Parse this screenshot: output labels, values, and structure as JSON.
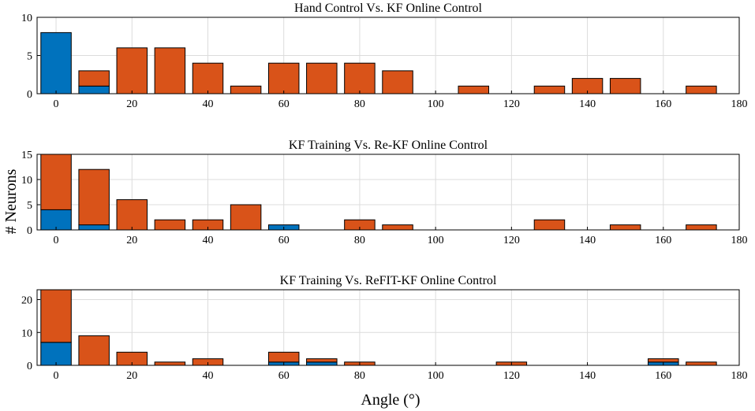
{
  "figure": {
    "ylabel": "# Neurons",
    "xlabel": "Angle (°)"
  },
  "colors": {
    "blue": "#0072bd",
    "orange": "#d95319"
  },
  "chart_data": [
    {
      "type": "bar",
      "stacked": true,
      "title": "Hand Control Vs. KF Online Control",
      "x": [
        0,
        10,
        20,
        30,
        40,
        50,
        60,
        70,
        80,
        90,
        100,
        110,
        120,
        130,
        140,
        150,
        160,
        170
      ],
      "series": [
        {
          "name": "blue",
          "values": [
            8,
            1,
            0,
            0,
            0,
            0,
            0,
            0,
            0,
            0,
            0,
            0,
            0,
            0,
            0,
            0,
            0,
            0
          ]
        },
        {
          "name": "orange",
          "values": [
            0,
            2,
            6,
            6,
            4,
            1,
            4,
            4,
            4,
            3,
            0,
            1,
            0,
            1,
            2,
            2,
            0,
            1
          ]
        }
      ],
      "xlim": [
        -5,
        180
      ],
      "ylim": [
        0,
        10
      ],
      "xticks": [
        0,
        20,
        40,
        60,
        80,
        100,
        120,
        140,
        160,
        180
      ],
      "yticks": [
        0,
        5,
        10
      ],
      "grid": true
    },
    {
      "type": "bar",
      "stacked": true,
      "title": "KF Training Vs. Re-KF Online Control",
      "x": [
        0,
        10,
        20,
        30,
        40,
        50,
        60,
        70,
        80,
        90,
        100,
        110,
        120,
        130,
        140,
        150,
        160,
        170
      ],
      "series": [
        {
          "name": "blue",
          "values": [
            4,
            1,
            0,
            0,
            0,
            0,
            1,
            0,
            0,
            0,
            0,
            0,
            0,
            0,
            0,
            0,
            0,
            0
          ]
        },
        {
          "name": "orange",
          "values": [
            11,
            11,
            6,
            2,
            2,
            5,
            0,
            0,
            2,
            1,
            0,
            0,
            0,
            2,
            0,
            1,
            0,
            1
          ]
        }
      ],
      "xlim": [
        -5,
        180
      ],
      "ylim": [
        0,
        15
      ],
      "xticks": [
        0,
        20,
        40,
        60,
        80,
        100,
        120,
        140,
        160,
        180
      ],
      "yticks": [
        0,
        5,
        10,
        15
      ],
      "grid": true
    },
    {
      "type": "bar",
      "stacked": true,
      "title": "KF Training Vs. ReFIT-KF Online Control",
      "x": [
        0,
        10,
        20,
        30,
        40,
        50,
        60,
        70,
        80,
        90,
        100,
        110,
        120,
        130,
        140,
        150,
        160,
        170
      ],
      "series": [
        {
          "name": "blue",
          "values": [
            7,
            0,
            0,
            0,
            0,
            0,
            1,
            1,
            0,
            0,
            0,
            0,
            0,
            0,
            0,
            0,
            1,
            0
          ]
        },
        {
          "name": "orange",
          "values": [
            16,
            9,
            4,
            1,
            2,
            0,
            3,
            1,
            1,
            0,
            0,
            0,
            1,
            0,
            0,
            0,
            1,
            1
          ]
        }
      ],
      "xlim": [
        -5,
        180
      ],
      "ylim": [
        0,
        23
      ],
      "xticks": [
        0,
        20,
        40,
        60,
        80,
        100,
        120,
        140,
        160,
        180
      ],
      "yticks": [
        0,
        10,
        20
      ],
      "grid": true
    }
  ]
}
